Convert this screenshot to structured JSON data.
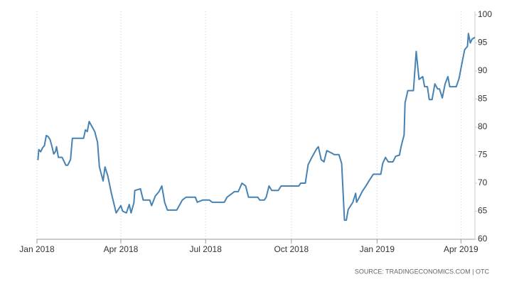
{
  "chart_data": {
    "type": "line",
    "source": "SOURCE: TRADINGECONOMICS.COM | OTC",
    "x": [
      1,
      2,
      4,
      6,
      8,
      10,
      12,
      14,
      16,
      18,
      20,
      21,
      23,
      27,
      31,
      33,
      36,
      38,
      50,
      52,
      54,
      56,
      58,
      62,
      65,
      67,
      71,
      73,
      76,
      80,
      85,
      90,
      92,
      96,
      99,
      101,
      104,
      105,
      111,
      114,
      121,
      123,
      127,
      131,
      134,
      137,
      140,
      150,
      153,
      156,
      160,
      170,
      172,
      178,
      185,
      188,
      201,
      204,
      212,
      216,
      220,
      224,
      227,
      237,
      239,
      244,
      246,
      249,
      252,
      259,
      262,
      281,
      283,
      288,
      291,
      295,
      300,
      302,
      305,
      308,
      311,
      316,
      319,
      324,
      327,
      330,
      332,
      334,
      339,
      342,
      343,
      346,
      349,
      353,
      357,
      361,
      369,
      371,
      374,
      377,
      382,
      385,
      389,
      391,
      394,
      395,
      398,
      404,
      407,
      410,
      414,
      416,
      419,
      421,
      424,
      427,
      430,
      432,
      435,
      438,
      441,
      443,
      450,
      453,
      456,
      459,
      462,
      463,
      465,
      467,
      470
    ],
    "series": [
      {
        "color": "#4682b4",
        "values": [
          74.1,
          76,
          75.6,
          76.3,
          76.7,
          78.5,
          78.3,
          77.8,
          76.6,
          75.2,
          75.7,
          76.5,
          74.6,
          74.6,
          73.2,
          73.2,
          74.2,
          78,
          78,
          79.5,
          79.2,
          81,
          80.4,
          79.2,
          77.3,
          72.9,
          70.4,
          72.9,
          71.3,
          68.1,
          64.7,
          66,
          65,
          64.7,
          66.2,
          64.7,
          66.5,
          68.7,
          69,
          67,
          67,
          66,
          67.7,
          68.5,
          69.5,
          66.6,
          65.2,
          65.2,
          66.1,
          67,
          67.5,
          67.5,
          66.6,
          67,
          67,
          66.6,
          66.6,
          67.5,
          68.5,
          68.5,
          70,
          69.5,
          67.5,
          67.5,
          67,
          67,
          67.5,
          69.5,
          68.7,
          68.7,
          69.5,
          69.5,
          70,
          70,
          73.3,
          74.6,
          76.1,
          76.5,
          74.2,
          73.8,
          75.8,
          75.4,
          75.1,
          75.1,
          73.5,
          63.4,
          63.4,
          65.3,
          66.6,
          68.2,
          66.6,
          67.5,
          68.5,
          69.5,
          70.6,
          71.6,
          71.6,
          73.5,
          74.6,
          73.8,
          73.8,
          74.8,
          75,
          76.7,
          78.6,
          84.3,
          86.5,
          86.5,
          93.5,
          88.5,
          89,
          87.2,
          87.2,
          84.9,
          84.9,
          87.7,
          86.8,
          86.8,
          85.2,
          87.7,
          89,
          87.2,
          87.2,
          88.7,
          91.3,
          93.8,
          94.4,
          96.7,
          95,
          95.7,
          96
        ]
      }
    ],
    "xlim": [
      0,
      470
    ],
    "xticks": [
      {
        "value": 0,
        "label": "Jan 2018"
      },
      {
        "value": 90,
        "label": "Apr 2018"
      },
      {
        "value": 181,
        "label": "Jul 2018"
      },
      {
        "value": 273,
        "label": "Oct 2018"
      },
      {
        "value": 365,
        "label": "Jan 2019"
      },
      {
        "value": 455,
        "label": "Apr 2019"
      }
    ],
    "ylim": [
      60,
      100
    ],
    "yticks": [
      60,
      65,
      70,
      75,
      80,
      85,
      90,
      95,
      100
    ],
    "grid": true
  }
}
